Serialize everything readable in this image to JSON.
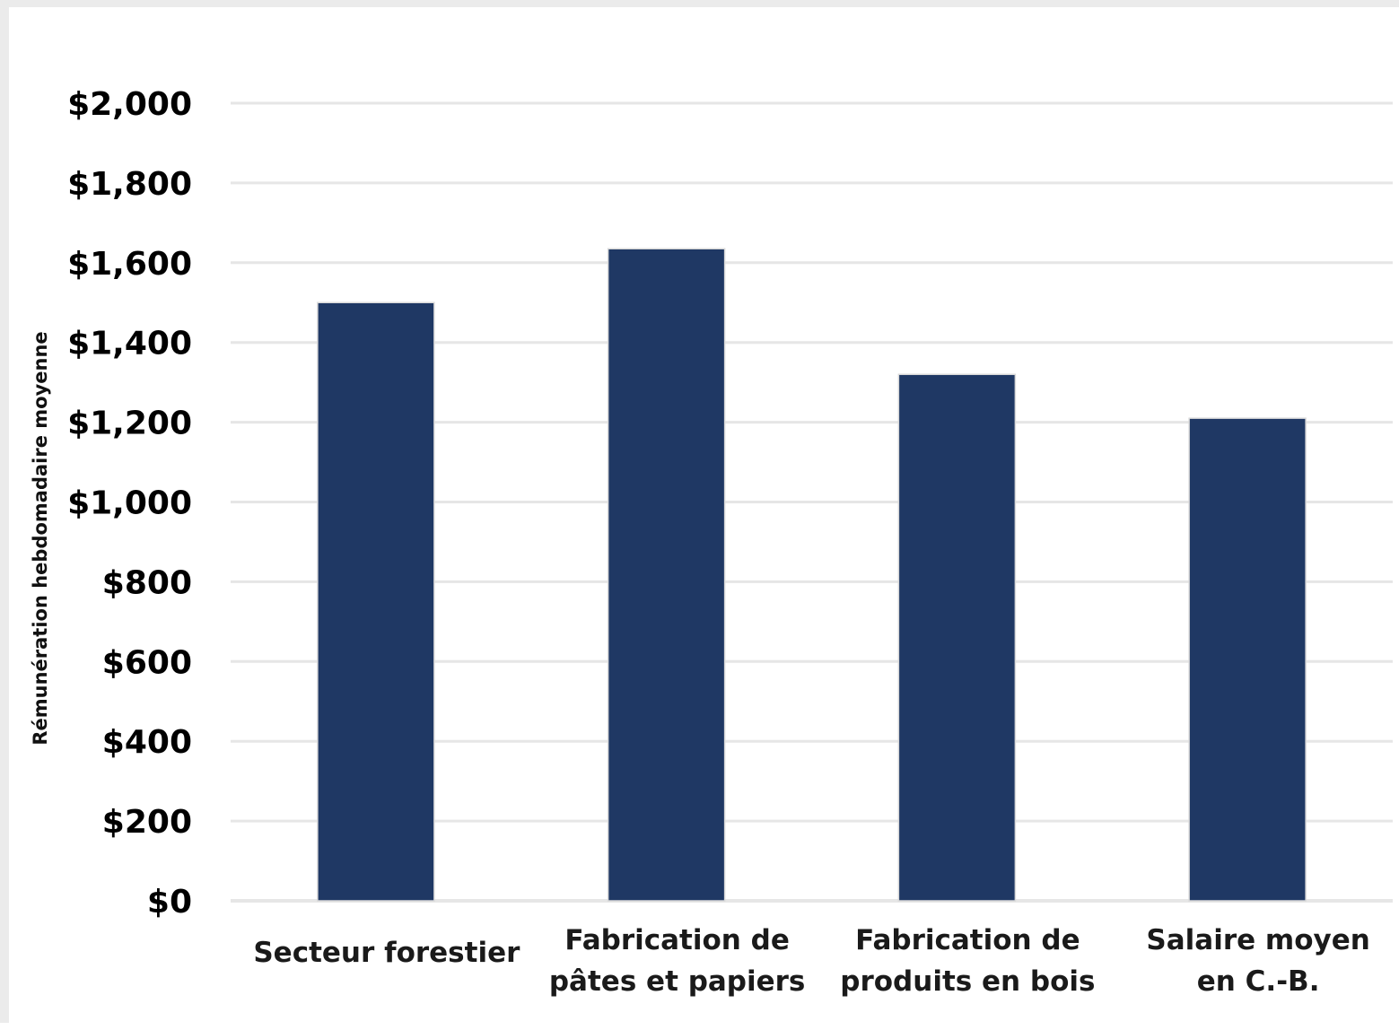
{
  "chart_data": {
    "type": "bar",
    "categories": [
      [
        "Secteur forestier"
      ],
      [
        "Fabrication de",
        "pâtes et papiers"
      ],
      [
        "Fabrication de",
        "produits en bois"
      ],
      [
        "Salaire moyen",
        "en C.-B."
      ]
    ],
    "values": [
      1500,
      1635,
      1320,
      1210
    ],
    "ylabel": "Rémunération hebdomadaire moyenne",
    "ylim": [
      0,
      2000
    ],
    "yticks": [
      0,
      200,
      400,
      600,
      800,
      1000,
      1200,
      1400,
      1600,
      1800,
      2000
    ],
    "ytick_labels": [
      "$0",
      "$200",
      "$400",
      "$600",
      "$800",
      "$1,000",
      "$1,200",
      "$1,400",
      "$1,600",
      "$1,800",
      "$2,000"
    ],
    "grid": true,
    "bar_color": "#1f3864",
    "grid_color": "#e6e6e6"
  }
}
